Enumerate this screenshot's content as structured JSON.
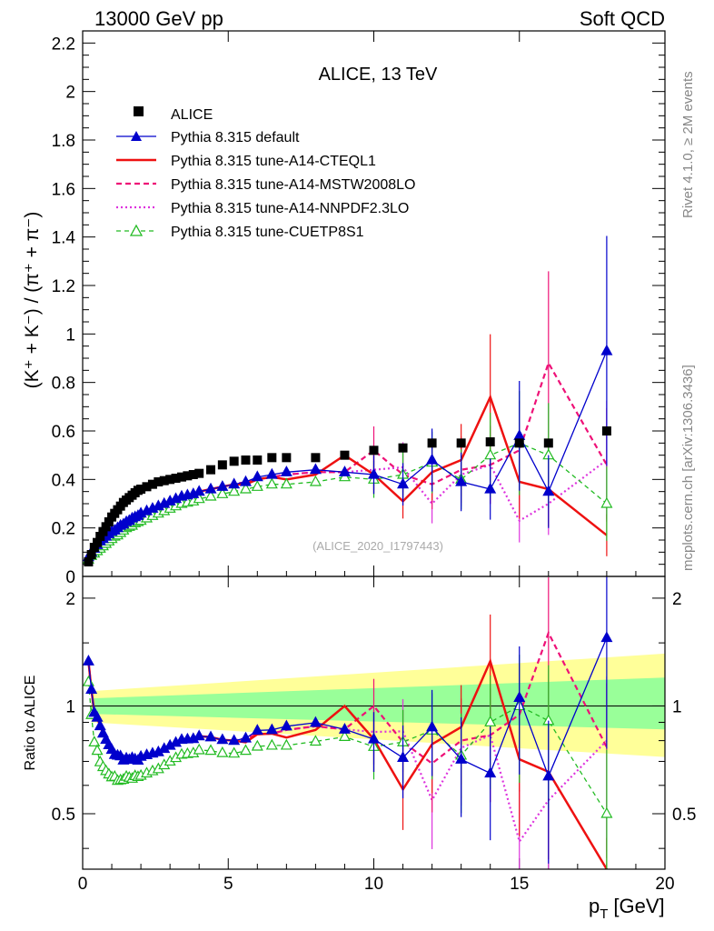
{
  "header": {
    "left": "13000 GeV pp",
    "right": "Soft QCD",
    "side_top": "Rivet 4.1.0, ≥ 2M events",
    "side_bottom": "mcplots.cern.ch [arXiv:1306.3436]"
  },
  "chart_data": {
    "type": "scatter",
    "title": "ALICE, 13 TeV",
    "watermark": "(ALICE_2020_I1797443)",
    "xlabel_main": "p",
    "xlabel_sub": "T",
    "xlabel_unit": "[GeV]",
    "ylabel": "(K⁺ + K⁻) / (π⁺ + π⁻)",
    "ratio_ylabel": "Ratio to ALICE",
    "xlim": [
      0,
      20
    ],
    "ylim": [
      0,
      2.25
    ],
    "ratio_ylim": [
      0.35,
      2.3
    ],
    "xticks": [
      "0",
      "5",
      "10",
      "15",
      "20"
    ],
    "yticks": [
      "0",
      "0.2",
      "0.4",
      "0.6",
      "0.8",
      "1",
      "1.2",
      "1.4",
      "1.6",
      "1.8",
      "2",
      "2.2"
    ],
    "ratio_yticks": [
      "0.5",
      "1",
      "2"
    ],
    "x": [
      0.2,
      0.3,
      0.4,
      0.5,
      0.6,
      0.7,
      0.8,
      0.9,
      1.0,
      1.1,
      1.2,
      1.3,
      1.4,
      1.5,
      1.6,
      1.7,
      1.8,
      1.9,
      2.0,
      2.2,
      2.4,
      2.6,
      2.8,
      3.0,
      3.2,
      3.4,
      3.6,
      3.8,
      4.0,
      4.4,
      4.8,
      5.2,
      5.6,
      6.0,
      6.5,
      7.0,
      8.0,
      9.0,
      10.0,
      11.0,
      12.0,
      13.0,
      14.0,
      15.0,
      16.0,
      18.0
    ],
    "series": [
      {
        "name": "ALICE",
        "values": [
          0.06,
          0.09,
          0.12,
          0.14,
          0.165,
          0.185,
          0.205,
          0.225,
          0.245,
          0.26,
          0.275,
          0.29,
          0.305,
          0.315,
          0.325,
          0.335,
          0.345,
          0.355,
          0.36,
          0.37,
          0.38,
          0.39,
          0.395,
          0.4,
          0.405,
          0.41,
          0.415,
          0.42,
          0.425,
          0.44,
          0.46,
          0.475,
          0.48,
          0.48,
          0.49,
          0.49,
          0.49,
          0.5,
          0.52,
          0.53,
          0.55,
          0.55,
          0.555,
          0.55,
          0.55,
          0.6
        ]
      },
      {
        "name": "Pythia 8.315 default",
        "values": [
          0.08,
          0.1,
          0.115,
          0.13,
          0.145,
          0.155,
          0.165,
          0.175,
          0.185,
          0.19,
          0.2,
          0.21,
          0.215,
          0.225,
          0.23,
          0.24,
          0.245,
          0.25,
          0.26,
          0.27,
          0.28,
          0.29,
          0.3,
          0.31,
          0.32,
          0.33,
          0.335,
          0.34,
          0.35,
          0.36,
          0.37,
          0.38,
          0.39,
          0.41,
          0.42,
          0.43,
          0.44,
          0.43,
          0.42,
          0.38,
          0.48,
          0.39,
          0.36,
          0.58,
          0.35,
          0.93
        ]
      },
      {
        "name": "Pythia 8.315 tune-A14-CTEQL1",
        "values": [
          0.08,
          0.1,
          0.115,
          0.13,
          0.145,
          0.155,
          0.165,
          0.175,
          0.185,
          0.19,
          0.2,
          0.21,
          0.215,
          0.225,
          0.23,
          0.24,
          0.245,
          0.25,
          0.26,
          0.27,
          0.28,
          0.29,
          0.3,
          0.31,
          0.32,
          0.33,
          0.335,
          0.34,
          0.35,
          0.36,
          0.37,
          0.38,
          0.38,
          0.4,
          0.41,
          0.4,
          0.42,
          0.5,
          0.42,
          0.31,
          0.43,
          0.48,
          0.74,
          0.39,
          0.36,
          0.17
        ]
      },
      {
        "name": "Pythia 8.315 tune-A14-MSTW2008LO",
        "values": [
          0.08,
          0.1,
          0.115,
          0.13,
          0.145,
          0.155,
          0.165,
          0.175,
          0.185,
          0.19,
          0.2,
          0.21,
          0.215,
          0.225,
          0.23,
          0.24,
          0.245,
          0.25,
          0.26,
          0.27,
          0.28,
          0.29,
          0.3,
          0.31,
          0.32,
          0.33,
          0.335,
          0.34,
          0.35,
          0.36,
          0.37,
          0.38,
          0.39,
          0.4,
          0.41,
          0.42,
          0.43,
          0.43,
          0.52,
          0.42,
          0.38,
          0.44,
          0.46,
          0.52,
          0.88,
          0.46
        ]
      },
      {
        "name": "Pythia 8.315 tune-A14-NNPDF2.3LO",
        "values": [
          0.08,
          0.1,
          0.115,
          0.13,
          0.145,
          0.155,
          0.165,
          0.175,
          0.185,
          0.19,
          0.2,
          0.21,
          0.215,
          0.225,
          0.23,
          0.24,
          0.245,
          0.25,
          0.26,
          0.27,
          0.28,
          0.29,
          0.3,
          0.31,
          0.32,
          0.33,
          0.335,
          0.34,
          0.35,
          0.36,
          0.37,
          0.38,
          0.39,
          0.4,
          0.41,
          0.42,
          0.43,
          0.43,
          0.44,
          0.45,
          0.3,
          0.42,
          0.46,
          0.23,
          0.3,
          0.48
        ]
      },
      {
        "name": "Pythia 8.315 tune-CUETP8S1",
        "values": [
          0.07,
          0.085,
          0.095,
          0.105,
          0.115,
          0.125,
          0.135,
          0.145,
          0.155,
          0.165,
          0.17,
          0.18,
          0.19,
          0.2,
          0.205,
          0.21,
          0.22,
          0.225,
          0.23,
          0.24,
          0.25,
          0.26,
          0.27,
          0.28,
          0.29,
          0.3,
          0.305,
          0.31,
          0.32,
          0.33,
          0.34,
          0.35,
          0.36,
          0.37,
          0.38,
          0.38,
          0.39,
          0.41,
          0.4,
          0.42,
          0.47,
          0.4,
          0.5,
          0.55,
          0.5,
          0.3
        ]
      }
    ],
    "ratio_bands": {
      "inner": [
        0.86,
        1.2
      ],
      "outer": [
        0.72,
        1.4
      ]
    }
  },
  "legend": [
    "ALICE",
    "Pythia 8.315 default",
    "Pythia 8.315 tune-A14-CTEQL1",
    "Pythia 8.315 tune-A14-MSTW2008LO",
    "Pythia 8.315 tune-A14-NNPDF2.3LO",
    "Pythia 8.315 tune-CUETP8S1"
  ],
  "colors": {
    "alice": "#000000",
    "default": "#0000cc",
    "cteql1": "#ee1111",
    "mstw": "#ee1177",
    "nnpdf": "#dd33dd",
    "cuetp8s1": "#22bb22",
    "band_outer": "#ffff99",
    "band_inner": "#99ff99"
  }
}
